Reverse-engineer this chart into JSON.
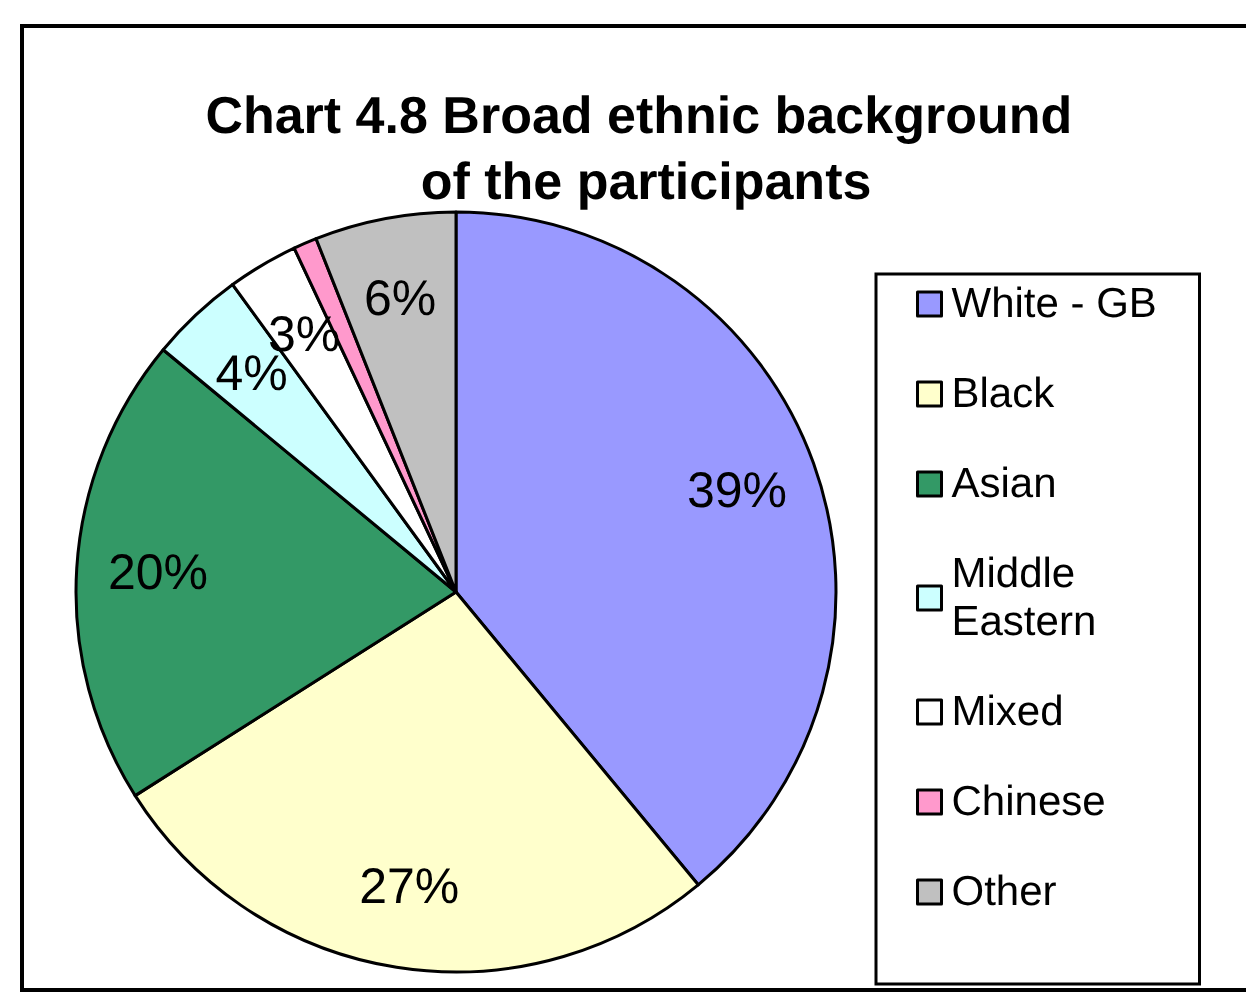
{
  "chart_data": {
    "type": "pie",
    "title": "Chart 4.8 Broad ethnic background of the participants",
    "categories": [
      "White - GB",
      "Black",
      "Asian",
      "Middle Eastern",
      "Mixed",
      "Chinese",
      "Other"
    ],
    "values": [
      39,
      27,
      20,
      4,
      3,
      1,
      6
    ],
    "colors": [
      "#9999ff",
      "#ffffcc",
      "#339966",
      "#ccffff",
      "#ffffff",
      "#ff99cc",
      "#c0c0c0"
    ],
    "value_labels": [
      "39%",
      "27%",
      "20%",
      "4%",
      "3%",
      null,
      "6%"
    ],
    "legend": "right"
  }
}
